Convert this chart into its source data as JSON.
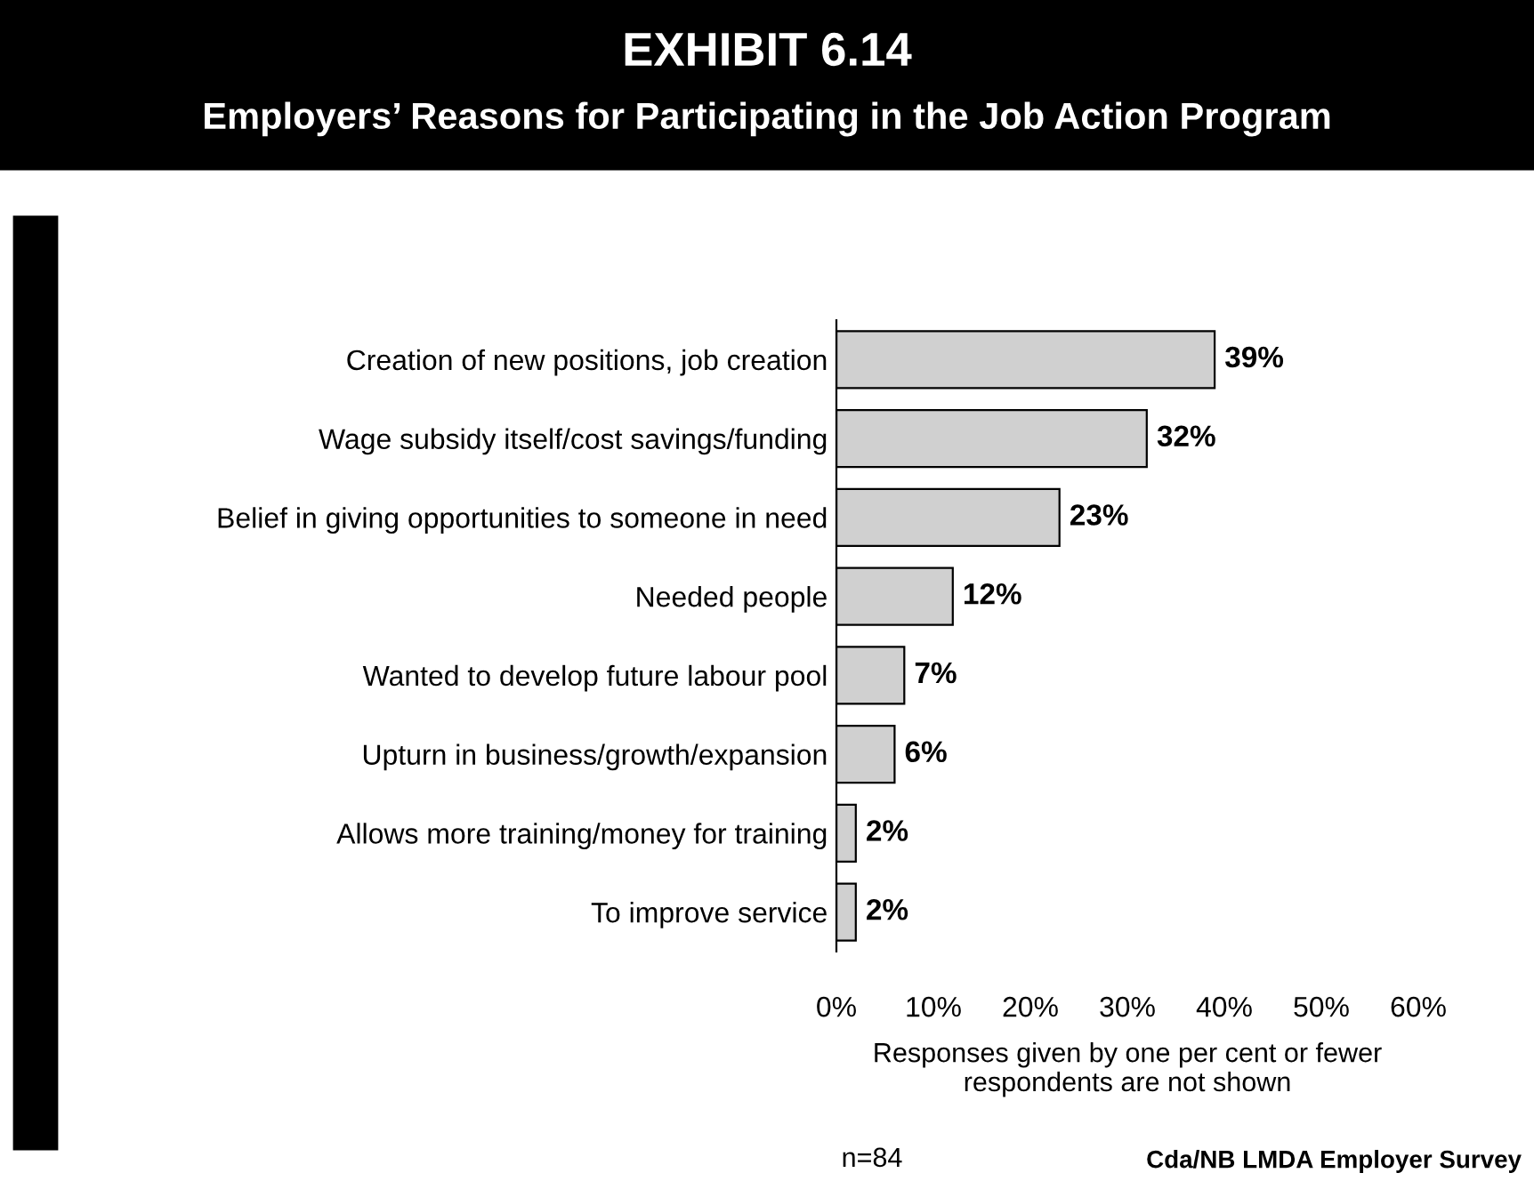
{
  "chart_data": {
    "type": "bar",
    "orientation": "horizontal",
    "title": "EXHIBIT 6.14",
    "subtitle": "Employers’ Reasons for Participating in the Job Action Program",
    "categories": [
      "Creation of new positions, job creation",
      "Wage subsidy itself/cost savings/funding",
      "Belief in giving opportunities to someone in need",
      "Needed people",
      "Wanted to develop future labour pool",
      "Upturn in business/growth/expansion",
      "Allows more training/money for training",
      "To improve service"
    ],
    "values": [
      39,
      32,
      23,
      12,
      7,
      6,
      2,
      2
    ],
    "value_labels": [
      "39%",
      "32%",
      "23%",
      "12%",
      "7%",
      "6%",
      "2%",
      "2%"
    ],
    "color": "#d0d0d0",
    "xlim": [
      0,
      60
    ],
    "xticks": [
      {
        "value": 0,
        "label": "0%"
      },
      {
        "value": 10,
        "label": "10%"
      },
      {
        "value": 20,
        "label": "20%"
      },
      {
        "value": 30,
        "label": "30%"
      },
      {
        "value": 40,
        "label": "40%"
      },
      {
        "value": 50,
        "label": "50%"
      },
      {
        "value": 60,
        "label": "60%"
      }
    ],
    "xlabel": "Responses given by one per cent or fewer\nrespondents are not shown",
    "annotations": [
      "n=84",
      "Cda/NB LMDA Employer Survey"
    ],
    "grid": false,
    "legend": false
  }
}
